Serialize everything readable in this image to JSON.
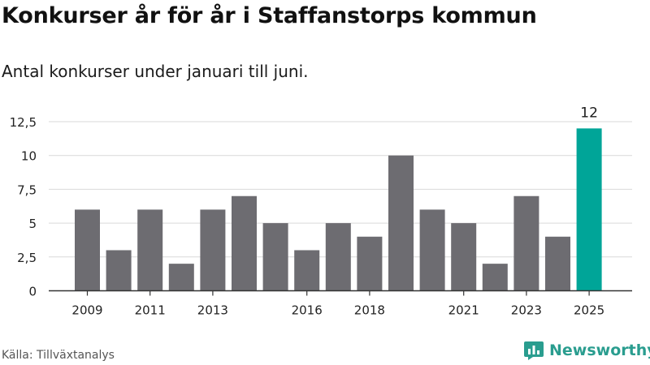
{
  "title": "Konkurser år för år i Staffanstorps kommun",
  "subtitle": "Antal konkurser under januari till juni.",
  "source": "Källa: Tillväxtanalys",
  "brand": {
    "name": "Newsworthy",
    "icon": "newsworthy-logo-icon",
    "color": "#2a9d8f"
  },
  "colors": {
    "bar": "#6d6c71",
    "highlight": "#00a598",
    "grid": "#d9d9d9",
    "axis": "#333333"
  },
  "chart_data": {
    "type": "bar",
    "categories": [
      "2009",
      "2010",
      "2011",
      "2012",
      "2013",
      "2014",
      "2015",
      "2016",
      "2017",
      "2018",
      "2019",
      "2020",
      "2021",
      "2022",
      "2023",
      "2024",
      "2025"
    ],
    "values": [
      6,
      3,
      6,
      2,
      6,
      7,
      5,
      3,
      5,
      4,
      10,
      6,
      5,
      2,
      7,
      4,
      12
    ],
    "x_tick_labels": [
      "2009",
      "2011",
      "2013",
      "2016",
      "2018",
      "2021",
      "2023",
      "2025"
    ],
    "y_ticks": [
      0,
      2.5,
      5,
      7.5,
      10,
      12.5
    ],
    "y_tick_labels": [
      "0",
      "2,5",
      "5",
      "7,5",
      "10",
      "12,5"
    ],
    "ylim": [
      0,
      12.5
    ],
    "highlight_index": 16,
    "data_labels": [
      {
        "index": 16,
        "text": "12"
      }
    ],
    "grid": true,
    "xlabel": "",
    "ylabel": ""
  }
}
